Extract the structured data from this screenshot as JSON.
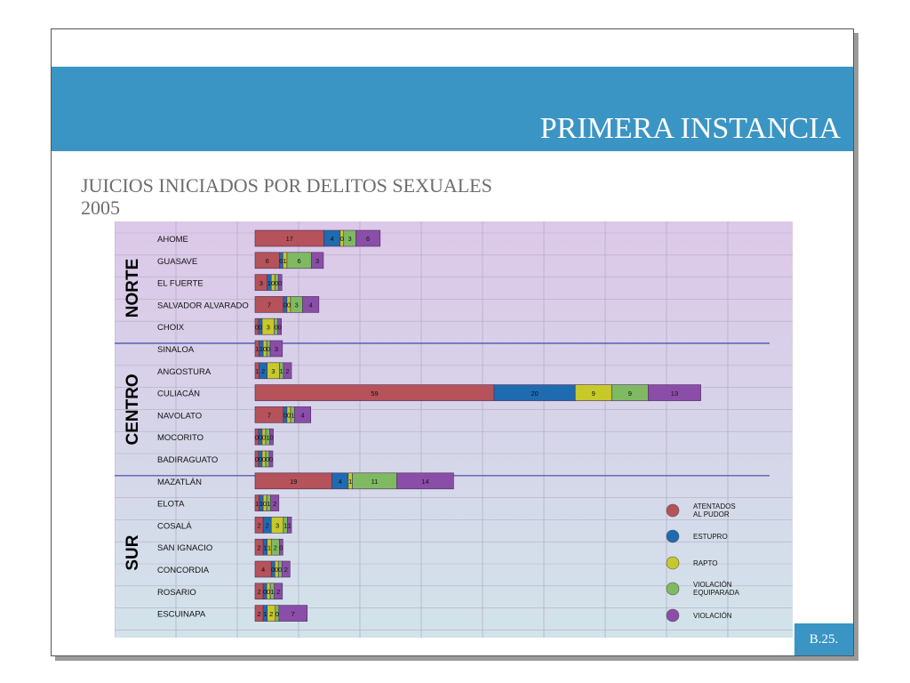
{
  "header": {
    "title": "PRIMERA INSTANCIA"
  },
  "subtitle": {
    "line1": "JUICIOS INICIADOS POR DELITOS SEXUALES",
    "line2": "2005"
  },
  "footer": {
    "page_label": "B.25."
  },
  "colors": {
    "band": "#3a95c4",
    "atentados": "#b5525a",
    "estupro": "#1f6bb0",
    "rapto": "#c7c92a",
    "violacion_equiparada": "#7fba62",
    "violacion": "#8a4ea8"
  },
  "chart_data": {
    "type": "bar",
    "orientation": "horizontal",
    "stacked": true,
    "title": "",
    "xlabel": "",
    "ylabel": "",
    "grid": true,
    "legend_position": "bottom-right",
    "categories": [
      "AHOME",
      "GUASAVE",
      "EL FUERTE",
      "SALVADOR ALVARADO",
      "CHOIX",
      "SINALOA",
      "ANGOSTURA",
      "CULIACÁN",
      "NAVOLATO",
      "MOCORITO",
      "BADIRAGUATO",
      "MAZATLÁN",
      "ELOTA",
      "COSALÁ",
      "SAN IGNACIO",
      "CONCORDIA",
      "ROSARIO",
      "ESCUINAPA"
    ],
    "groups": [
      {
        "name": "NORTE",
        "categories": [
          "AHOME",
          "GUASAVE",
          "EL FUERTE",
          "SALVADOR ALVARADO",
          "CHOIX"
        ]
      },
      {
        "name": "CENTRO",
        "categories": [
          "SINALOA",
          "ANGOSTURA",
          "CULIACÁN",
          "NAVOLATO",
          "MOCORITO",
          "BADIRAGUATO"
        ]
      },
      {
        "name": "SUR",
        "categories": [
          "MAZATLÁN",
          "ELOTA",
          "COSALÁ",
          "SAN IGNACIO",
          "CONCORDIA",
          "ROSARIO",
          "ESCUINAPA"
        ]
      }
    ],
    "series": [
      {
        "name": "ATENTADOS AL PUDOR",
        "color": "#b5525a",
        "values": [
          17,
          6,
          3,
          7,
          0,
          1,
          1,
          59,
          7,
          0,
          0,
          19,
          1,
          2,
          2,
          4,
          2,
          2
        ]
      },
      {
        "name": "ESTUPRO",
        "color": "#1f6bb0",
        "values": [
          4,
          0,
          1,
          0,
          0,
          1,
          2,
          20,
          0,
          0,
          0,
          4,
          1,
          2,
          1,
          0,
          0,
          1
        ]
      },
      {
        "name": "RAPTO",
        "color": "#c7c92a",
        "values": [
          0,
          1,
          0,
          0,
          3,
          0,
          3,
          9,
          0,
          0,
          0,
          1,
          0,
          3,
          1,
          0,
          0,
          2
        ]
      },
      {
        "name": "VIOLACIÓN EQUIPARADA",
        "color": "#7fba62",
        "values": [
          3,
          6,
          0,
          3,
          0,
          0,
          1,
          9,
          1,
          1,
          0,
          11,
          1,
          1,
          2,
          0,
          1,
          0
        ]
      },
      {
        "name": "VIOLACIÓN",
        "color": "#8a4ea8",
        "values": [
          6,
          3,
          0,
          4,
          0,
          3,
          2,
          13,
          4,
          0,
          0,
          14,
          2,
          1,
          0,
          2,
          2,
          7
        ]
      }
    ]
  }
}
